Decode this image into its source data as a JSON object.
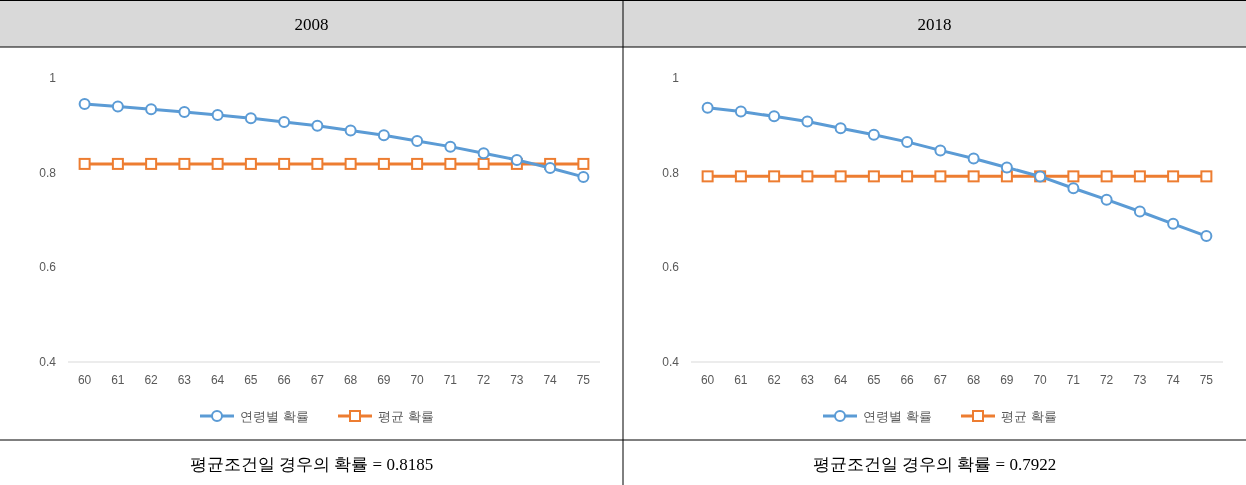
{
  "chart_data": [
    {
      "type": "line",
      "title": "2008",
      "categories": [
        "60",
        "61",
        "62",
        "63",
        "64",
        "65",
        "66",
        "67",
        "68",
        "69",
        "70",
        "71",
        "72",
        "73",
        "74",
        "75"
      ],
      "ylim": [
        0.4,
        1
      ],
      "yticks": [
        0.4,
        0.6,
        0.8,
        1
      ],
      "legend": "bottom",
      "series": [
        {
          "name": "연령별 확률",
          "color": "#5b9bd5",
          "marker": "circle",
          "values": [
            0.945,
            0.94,
            0.934,
            0.928,
            0.922,
            0.915,
            0.907,
            0.899,
            0.889,
            0.879,
            0.867,
            0.855,
            0.841,
            0.827,
            0.81,
            0.791
          ]
        },
        {
          "name": "평균 확률",
          "color": "#ed7d31",
          "marker": "square",
          "values": [
            0.8185,
            0.8185,
            0.8185,
            0.8185,
            0.8185,
            0.8185,
            0.8185,
            0.8185,
            0.8185,
            0.8185,
            0.8185,
            0.8185,
            0.8185,
            0.8185,
            0.8185,
            0.8185
          ]
        }
      ],
      "annotations": [
        "평균조건일 경우의 확률 = 0.8185"
      ]
    },
    {
      "type": "line",
      "title": "2018",
      "categories": [
        "60",
        "61",
        "62",
        "63",
        "64",
        "65",
        "66",
        "67",
        "68",
        "69",
        "70",
        "71",
        "72",
        "73",
        "74",
        "75"
      ],
      "ylim": [
        0.4,
        1
      ],
      "yticks": [
        0.4,
        0.6,
        0.8,
        1
      ],
      "legend": "bottom",
      "series": [
        {
          "name": "연령별 확률",
          "color": "#5b9bd5",
          "marker": "circle",
          "values": [
            0.937,
            0.929,
            0.919,
            0.908,
            0.894,
            0.88,
            0.865,
            0.847,
            0.83,
            0.811,
            0.792,
            0.767,
            0.743,
            0.718,
            0.692,
            0.666
          ]
        },
        {
          "name": "평균 확률",
          "color": "#ed7d31",
          "marker": "square",
          "values": [
            0.7922,
            0.7922,
            0.7922,
            0.7922,
            0.7922,
            0.7922,
            0.7922,
            0.7922,
            0.7922,
            0.7922,
            0.7922,
            0.7922,
            0.7922,
            0.7922,
            0.7922,
            0.7922
          ]
        }
      ],
      "annotations": [
        "평균조건일 경우의 확률 = 0.7922"
      ]
    }
  ]
}
